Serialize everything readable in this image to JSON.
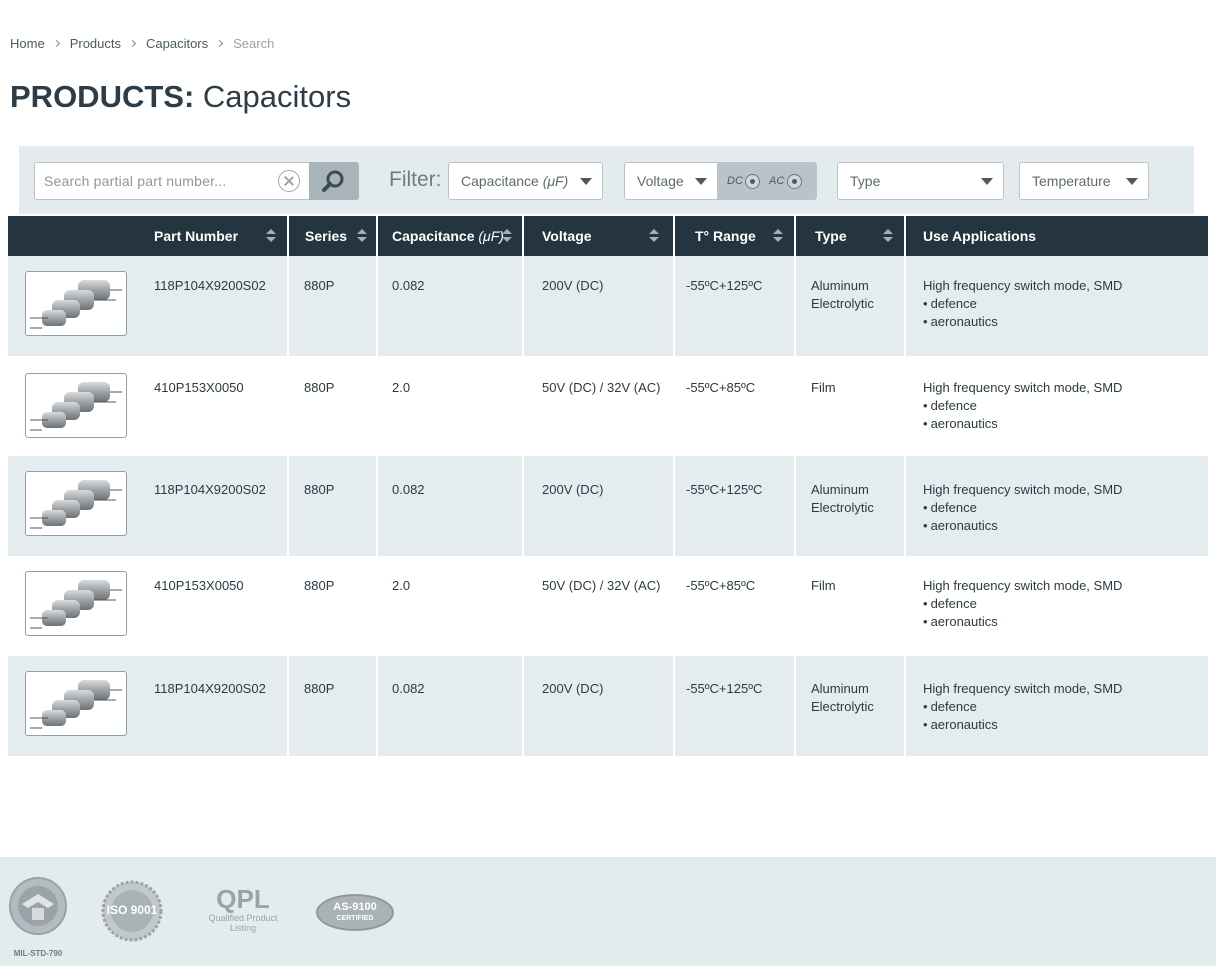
{
  "breadcrumb": {
    "items": [
      "Home",
      "Products",
      "Capacitors"
    ],
    "current": "Search"
  },
  "page_title": {
    "bold": "PRODUCTS:",
    "light": "Capacitors"
  },
  "filter": {
    "search_placeholder": "Search partial part number...",
    "label": "Filter:",
    "capacitance": {
      "label": "Capacitance",
      "unit": "(μF)"
    },
    "voltage": {
      "label": "Voltage"
    },
    "dc_label": "DC",
    "ac_label": "AC",
    "type": {
      "label": "Type"
    },
    "temperature": {
      "label": "Temperature"
    }
  },
  "table": {
    "columns": {
      "part_number": "Part Number",
      "series": "Series",
      "capacitance": "Capacitance",
      "capacitance_unit": "(μF)",
      "voltage": "Voltage",
      "temp_range": "T° Range",
      "type": "Type",
      "use_applications": "Use Applications"
    },
    "rows": [
      {
        "part_number": "118P104X9200S02",
        "series": "880P",
        "capacitance": "0.082",
        "voltage": "200V (DC)",
        "temp_range": "-55ºC+125ºC",
        "type": "Aluminum Electrolytic",
        "app_main": "High frequency switch mode, SMD",
        "app_bullets": [
          "defence",
          "aeronautics"
        ]
      },
      {
        "part_number": "410P153X0050",
        "series": "880P",
        "capacitance": "2.0",
        "voltage": "50V (DC) / 32V (AC)",
        "temp_range": "-55ºC+85ºC",
        "type": "Film",
        "app_main": "High frequency switch mode, SMD",
        "app_bullets": [
          "defence",
          "aeronautics"
        ]
      },
      {
        "part_number": "118P104X9200S02",
        "series": "880P",
        "capacitance": "0.082",
        "voltage": "200V (DC)",
        "temp_range": "-55ºC+125ºC",
        "type": "Aluminum Electrolytic",
        "app_main": "High frequency switch mode, SMD",
        "app_bullets": [
          "defence",
          "aeronautics"
        ]
      },
      {
        "part_number": "410P153X0050",
        "series": "880P",
        "capacitance": "2.0",
        "voltage": "50V (DC) / 32V (AC)",
        "temp_range": "-55ºC+85ºC",
        "type": "Film",
        "app_main": "High frequency switch mode, SMD",
        "app_bullets": [
          "defence",
          "aeronautics"
        ]
      },
      {
        "part_number": "118P104X9200S02",
        "series": "880P",
        "capacitance": "0.082",
        "voltage": "200V (DC)",
        "temp_range": "-55ºC+125ºC",
        "type": "Aluminum Electrolytic",
        "app_main": "High frequency switch mode, SMD",
        "app_bullets": [
          "defence",
          "aeronautics"
        ]
      }
    ]
  },
  "footer": {
    "logos": {
      "mil": "MIL-STD-790",
      "iso": "ISO 9001",
      "qpl_big": "QPL",
      "qpl_line1": "Qualified Product",
      "qpl_line2": "Listing",
      "as_top": "AS-9100",
      "as_bottom": "CERTIFIED"
    }
  },
  "colors": {
    "header_bg": "#243540",
    "row_shaded": "#e5ecef",
    "filter_bar": "#e4ebef",
    "text": "#2b3a44"
  }
}
